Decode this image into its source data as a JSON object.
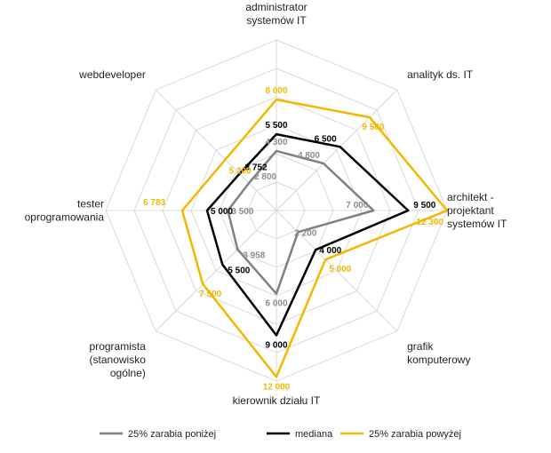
{
  "chart_data": {
    "type": "radar",
    "categories": [
      "administrator systemów IT",
      "analityk ds. IT",
      "architekt - projektant systemów IT",
      "grafik komputerowy",
      "kierownik działu IT",
      "programista (stanowisko ogólne)",
      "tester oprogramowania",
      "webdeveloper"
    ],
    "category_lines": [
      [
        "administrator",
        "systemów IT"
      ],
      [
        "analityk ds. IT"
      ],
      [
        "architekt -",
        "projektant",
        "systemów IT"
      ],
      [
        "grafik",
        "komputerowy"
      ],
      [
        "kierownik działu IT"
      ],
      [
        "programista",
        "(stanowisko",
        "ogólne)"
      ],
      [
        "tester",
        "oprogramowania"
      ],
      [
        "webdeveloper"
      ]
    ],
    "rmax": 12300,
    "grid_levels": 6,
    "series": [
      {
        "name": "25% zarabia poniżej",
        "color": "#808080",
        "values": [
          4300,
          4800,
          7000,
          2200,
          6000,
          3958,
          3500,
          2800
        ],
        "labels": [
          "4 300",
          "4 800",
          "7 000",
          "2 200",
          "6 000",
          "3 958",
          "3 500",
          "2 800"
        ]
      },
      {
        "name": "mediana",
        "color": "#000000",
        "values": [
          5500,
          6500,
          9500,
          4000,
          9000,
          5500,
          5000,
          3752
        ],
        "labels": [
          "5 500",
          "6 500",
          "9 500",
          "4 000",
          "9 000",
          "5 500",
          "5 000",
          "3 752"
        ]
      },
      {
        "name": "25% zarabia powyżej",
        "color": "#f2b800",
        "values": [
          8000,
          9500,
          12300,
          5000,
          12000,
          7500,
          6783,
          5200
        ],
        "labels": [
          "8 000",
          "9 500",
          "12 300",
          "5 000",
          "12 000",
          "7 500",
          "6 783",
          "5 200"
        ]
      }
    ],
    "legend_position": "bottom",
    "grid": true
  }
}
